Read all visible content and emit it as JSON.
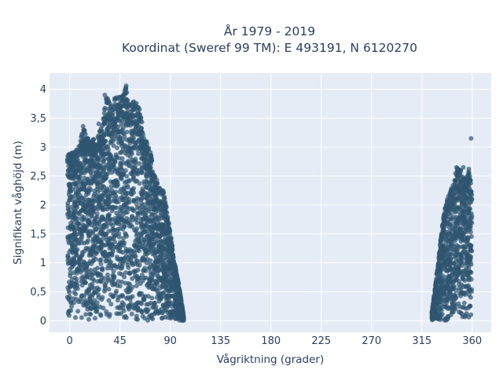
{
  "colors": {
    "plot_background": "#e5ecf6",
    "grid": "#ffffff",
    "marker": "#2f5670",
    "text": "#2a3f5f"
  },
  "chart_data": {
    "type": "scatter",
    "title": "År 1979 - 2019",
    "subtitle": "Koordinat (Sweref 99 TM): E 493191, N 6120270",
    "xlabel": "Vågriktning (grader)",
    "ylabel": "Signifikant våghöjd (m)",
    "xlim": [
      -18,
      377
    ],
    "ylim": [
      -0.2,
      4.28
    ],
    "x_ticks": [
      0,
      45,
      90,
      135,
      180,
      225,
      270,
      315,
      360
    ],
    "x_tick_labels": [
      "0",
      "45",
      "90",
      "135",
      "180",
      "225",
      "270",
      "315",
      "360"
    ],
    "y_ticks": [
      0,
      0.5,
      1,
      1.5,
      2,
      2.5,
      3,
      3.5,
      4
    ],
    "y_tick_labels": [
      "0",
      "0,5",
      "1",
      "1,5",
      "2",
      "2,5",
      "3",
      "3,5",
      "4"
    ],
    "grid": true,
    "envelope": [
      [
        -2,
        2.9
      ],
      [
        3,
        2.9
      ],
      [
        8,
        3.0
      ],
      [
        12,
        3.35
      ],
      [
        18,
        3.1
      ],
      [
        25,
        3.2
      ],
      [
        30,
        3.5
      ],
      [
        33,
        3.9
      ],
      [
        38,
        3.7
      ],
      [
        42,
        3.95
      ],
      [
        47,
        3.85
      ],
      [
        50,
        4.08
      ],
      [
        53,
        3.75
      ],
      [
        58,
        3.8
      ],
      [
        62,
        3.7
      ],
      [
        65,
        3.4
      ],
      [
        68,
        3.15
      ],
      [
        72,
        2.95
      ],
      [
        76,
        2.55
      ],
      [
        80,
        2.3
      ],
      [
        84,
        2.25
      ],
      [
        88,
        1.8
      ],
      [
        91,
        1.4
      ],
      [
        94,
        1.0
      ],
      [
        97,
        0.7
      ],
      [
        100,
        0.35
      ],
      [
        102,
        0.05
      ],
      [
        324,
        0.15
      ],
      [
        327,
        0.6
      ],
      [
        330,
        1.1
      ],
      [
        332,
        1.45
      ],
      [
        335,
        1.9
      ],
      [
        339,
        2.2
      ],
      [
        343,
        2.35
      ],
      [
        346,
        2.65
      ],
      [
        350,
        2.6
      ],
      [
        354,
        2.45
      ],
      [
        357,
        2.6
      ],
      [
        360,
        2.4
      ]
    ],
    "outliers": [
      {
        "x": 50.5,
        "y": 4.06
      },
      {
        "x": 50,
        "y": 4.0
      },
      {
        "x": 31.5,
        "y": 3.9
      },
      {
        "x": 12,
        "y": 3.36
      },
      {
        "x": 46,
        "y": 3.87
      },
      {
        "x": 359,
        "y": 3.15
      },
      {
        "x": 346,
        "y": 2.65
      },
      {
        "x": 352,
        "y": 2.65
      },
      {
        "x": 357,
        "y": 2.62
      },
      {
        "x": 2,
        "y": 2.9
      },
      {
        "x": 5,
        "y": 2.84
      },
      {
        "x": 26,
        "y": 3.4
      }
    ]
  }
}
